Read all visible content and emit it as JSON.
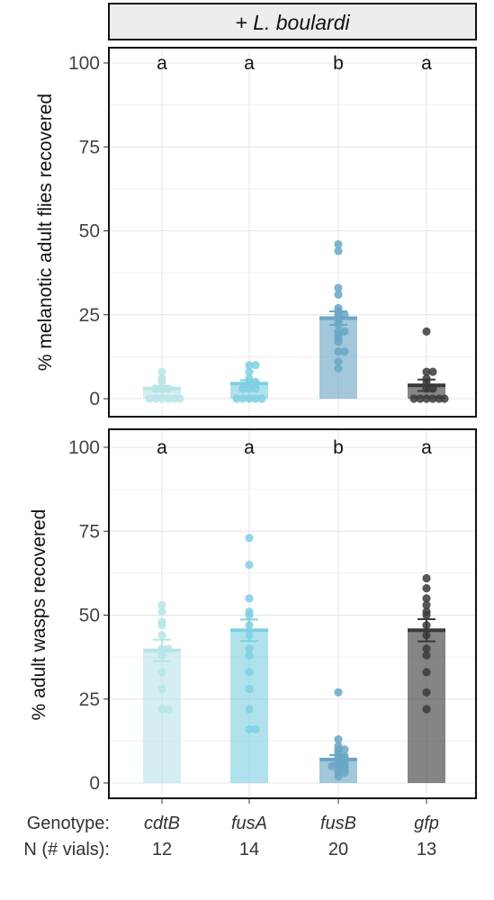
{
  "strip_label": "+ L. boulardi",
  "footer": {
    "genotype_label": "Genotype:",
    "n_label": "N (# vials):"
  },
  "genotypes": [
    "cdtB",
    "fusA",
    "fusB",
    "gfp"
  ],
  "n_vials": [
    "12",
    "14",
    "20",
    "13"
  ],
  "colors": {
    "cdtB": "#b9e4e8",
    "fusA": "#7fd0e2",
    "fusB": "#6aa7c6",
    "gfp": "#3a3a3a"
  },
  "chart_data": [
    {
      "type": "bar",
      "ylabel": "% melanotic adult flies recovered",
      "ylim": [
        0,
        100
      ],
      "yticks": [
        0,
        25,
        50,
        75,
        100
      ],
      "grid": true,
      "categories": [
        "cdtB",
        "fusA",
        "fusB",
        "gfp"
      ],
      "values": [
        3,
        4.5,
        24,
        4
      ],
      "se": [
        0.8,
        1,
        2,
        1.7
      ],
      "significance": [
        "a",
        "a",
        "b",
        "a"
      ],
      "points": [
        [
          0,
          0,
          0,
          0,
          0,
          0,
          3,
          3,
          3,
          5,
          6,
          8
        ],
        [
          0,
          0,
          0,
          0,
          0,
          3,
          3,
          3,
          5,
          5,
          6,
          8,
          10,
          10
        ],
        [
          9,
          11,
          14,
          14,
          17,
          18,
          19,
          20,
          20,
          22,
          23,
          24,
          25,
          25,
          26,
          27,
          31,
          33,
          44,
          46
        ],
        [
          0,
          0,
          0,
          0,
          0,
          0,
          3,
          3,
          5,
          6,
          8,
          8,
          20
        ]
      ]
    },
    {
      "type": "bar",
      "ylabel": "% adult wasps recovered",
      "ylim": [
        0,
        100
      ],
      "yticks": [
        0,
        25,
        50,
        75,
        100
      ],
      "grid": true,
      "categories": [
        "cdtB",
        "fusA",
        "fusB",
        "gfp"
      ],
      "values": [
        39.5,
        45.5,
        7,
        45.5
      ],
      "se": [
        3.2,
        3.2,
        1.3,
        3.3
      ],
      "significance": [
        "a",
        "a",
        "b",
        "a"
      ],
      "points": [
        [
          22,
          22,
          28,
          33,
          38,
          40,
          40,
          44,
          47,
          48,
          51,
          53
        ],
        [
          16,
          16,
          22,
          28,
          33,
          38,
          40,
          44,
          47,
          50,
          51,
          55,
          65,
          73
        ],
        [
          2,
          3,
          3,
          4,
          4,
          5,
          5,
          5,
          6,
          6,
          7,
          7,
          8,
          8,
          9,
          10,
          10,
          11,
          13,
          27
        ],
        [
          22,
          27,
          33,
          38,
          40,
          44,
          47,
          50,
          51,
          53,
          55,
          58,
          61
        ]
      ]
    }
  ]
}
